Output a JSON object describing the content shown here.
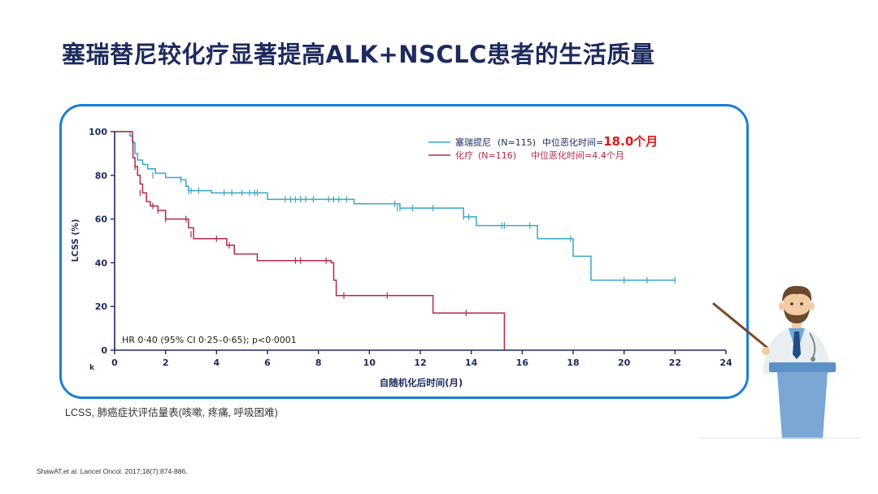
{
  "slide": {
    "title": "塞瑞替尼较化疗显著提高ALK+NSCLC患者的生活质量",
    "footnote": "LCSS, 肺癌症状评估量表(咳嗽, 疼痛, 呼吸困难)",
    "reference": "ShawAT,et al. Lancet Oncol. 2017;18(7):874-886."
  },
  "chart_data": {
    "type": "line",
    "subtype": "kaplan-meier step",
    "xlabel": "自随机化后时间(月)",
    "ylabel": "LCSS (%)",
    "xlim": [
      0,
      24
    ],
    "ylim": [
      0,
      100
    ],
    "xticks": [
      0,
      2,
      4,
      6,
      8,
      10,
      12,
      14,
      16,
      18,
      20,
      22,
      24
    ],
    "yticks": [
      0,
      20,
      40,
      60,
      80,
      100
    ],
    "axis_stub_label": "k",
    "annotation": "HR 0·40 (95% CI 0·25–0·65); p<0·0001",
    "legend_position": "top-right",
    "series": [
      {
        "name": "塞瑞提尼",
        "legend_n": "(N=115)",
        "legend_median_label": "中位恶化时间=",
        "legend_median_value": "18.0个月",
        "color": "#3aa6c9",
        "steps": [
          [
            0,
            100
          ],
          [
            0.6,
            98
          ],
          [
            0.7,
            95
          ],
          [
            0.8,
            90
          ],
          [
            0.9,
            87
          ],
          [
            1.1,
            85
          ],
          [
            1.3,
            83
          ],
          [
            1.6,
            81
          ],
          [
            2.0,
            79
          ],
          [
            2.6,
            78
          ],
          [
            2.8,
            75
          ],
          [
            2.9,
            73
          ],
          [
            3.8,
            72
          ],
          [
            6.0,
            69
          ],
          [
            9.4,
            67
          ],
          [
            11.2,
            65
          ],
          [
            13.7,
            61
          ],
          [
            14.2,
            57
          ],
          [
            16.6,
            51
          ],
          [
            18.0,
            43
          ],
          [
            18.7,
            32
          ],
          [
            22.0,
            32
          ]
        ],
        "censors": [
          [
            1.5,
            80
          ],
          [
            2.6,
            78
          ],
          [
            2.9,
            73
          ],
          [
            3.0,
            73
          ],
          [
            3.3,
            73
          ],
          [
            4.3,
            72
          ],
          [
            4.6,
            72
          ],
          [
            5.0,
            72
          ],
          [
            5.3,
            72
          ],
          [
            5.5,
            72
          ],
          [
            5.6,
            72
          ],
          [
            6.7,
            69
          ],
          [
            6.9,
            69
          ],
          [
            7.1,
            69
          ],
          [
            7.3,
            69
          ],
          [
            7.5,
            69
          ],
          [
            7.8,
            69
          ],
          [
            8.4,
            69
          ],
          [
            8.6,
            69
          ],
          [
            8.8,
            69
          ],
          [
            9.1,
            69
          ],
          [
            11.0,
            67
          ],
          [
            11.1,
            65
          ],
          [
            11.2,
            65
          ],
          [
            11.7,
            65
          ],
          [
            12.5,
            65
          ],
          [
            13.7,
            61
          ],
          [
            13.9,
            61
          ],
          [
            15.2,
            57
          ],
          [
            15.3,
            57
          ],
          [
            16.3,
            57
          ],
          [
            17.9,
            51
          ],
          [
            20.0,
            32
          ],
          [
            20.9,
            32
          ],
          [
            22.0,
            32
          ]
        ]
      },
      {
        "name": "化疗",
        "legend_n": "(N=116)",
        "legend_median_label": "中位恶化时间=",
        "legend_median_value": "4.4个月",
        "color": "#b5294a",
        "steps": [
          [
            0,
            100
          ],
          [
            0.7,
            96
          ],
          [
            0.72,
            88
          ],
          [
            0.8,
            84
          ],
          [
            0.9,
            80
          ],
          [
            1.0,
            76
          ],
          [
            1.1,
            72
          ],
          [
            1.25,
            68
          ],
          [
            1.4,
            66
          ],
          [
            1.7,
            64
          ],
          [
            2.0,
            60
          ],
          [
            2.9,
            56
          ],
          [
            3.1,
            51
          ],
          [
            4.4,
            48
          ],
          [
            4.7,
            44
          ],
          [
            5.6,
            41
          ],
          [
            8.5,
            40
          ],
          [
            8.6,
            32
          ],
          [
            8.7,
            25
          ],
          [
            12.5,
            17
          ],
          [
            15.3,
            0
          ]
        ],
        "censors": [
          [
            0.8,
            84
          ],
          [
            1.0,
            72
          ],
          [
            1.5,
            66
          ],
          [
            1.7,
            64
          ],
          [
            2.0,
            60
          ],
          [
            2.8,
            60
          ],
          [
            3.0,
            53
          ],
          [
            4.0,
            51
          ],
          [
            4.5,
            48
          ],
          [
            7.1,
            41
          ],
          [
            7.3,
            41
          ],
          [
            8.3,
            41
          ],
          [
            9.0,
            25
          ],
          [
            10.7,
            25
          ],
          [
            13.8,
            17
          ]
        ]
      }
    ]
  },
  "presenter": {
    "colors": {
      "podium": "#7aa7d3",
      "podium_top": "#5c90c8",
      "coat": "#e9eef2",
      "shirt": "#6fa9d8",
      "tie": "#1f4c82",
      "skin": "#f3cba2",
      "hair": "#6b4a2c",
      "pointer": "#7a4a2a"
    }
  }
}
